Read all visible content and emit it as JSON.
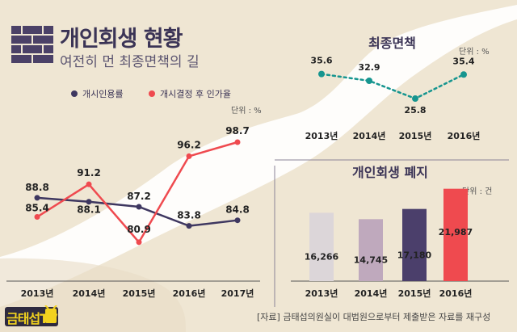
{
  "header": {
    "title": "개인회생 현황",
    "subtitle": "여전히 먼 최종면책의 길",
    "icon": "brick-wall-icon"
  },
  "legend": {
    "series1": "개시인용률",
    "series2": "개시결정 후 인가율"
  },
  "line_chart_unit": "단위 : %",
  "area_chart_title": "최종면책",
  "area_chart_unit": "단위 : %",
  "bar_chart_title": "개인회생 폐지",
  "bar_chart_unit": "단위 : 건",
  "footer": "[자료] 금태섭의원실이 대법원으로부터 제출받은 자료를 재구성",
  "logo_text": "금태섭TV",
  "colors": {
    "navy": "#3e3760",
    "red": "#ef4a4f",
    "teal": "#16958f",
    "bar1": "#dcd6d9",
    "bar2": "#bfa9bd",
    "bar3": "#4b3f6b",
    "bar4": "#ef4a4f",
    "background": "#efe6d3",
    "road": "#ffffff"
  },
  "chart_data": [
    {
      "type": "line",
      "categories": [
        "2013년",
        "2014년",
        "2015년",
        "2016년",
        "2017년"
      ],
      "series": [
        {
          "name": "개시인용률",
          "values": [
            88.8,
            88.1,
            87.2,
            83.8,
            84.8
          ],
          "labels": [
            "88.8",
            "88.1",
            "87.2",
            "83.8",
            "84.8"
          ],
          "color": "#3e3760"
        },
        {
          "name": "개시결정 후 인가율",
          "values": [
            85.4,
            91.2,
            80.9,
            96.2,
            98.7
          ],
          "labels": [
            "85.4",
            "91.2",
            "80.9",
            "96.2",
            "98.7"
          ],
          "color": "#ef4a4f"
        }
      ],
      "ylabel": "단위 : %",
      "ylim": [
        78,
        101
      ],
      "legend": "top-left",
      "grid": false
    },
    {
      "type": "line",
      "title": "최종면책",
      "categories": [
        "2013년",
        "2014년",
        "2015년",
        "2016년"
      ],
      "values": [
        35.6,
        32.9,
        25.8,
        35.4
      ],
      "labels": [
        "35.6",
        "32.9",
        "25.8",
        "35.4"
      ],
      "ylabel": "단위 : %",
      "style": "dotted",
      "color": "#16958f",
      "ylim": [
        20,
        40
      ]
    },
    {
      "type": "bar",
      "title": "개인회생 폐지",
      "categories": [
        "2013년",
        "2014년",
        "2015년",
        "2016년"
      ],
      "values": [
        16266,
        14745,
        17180,
        21987
      ],
      "labels": [
        "16,266",
        "14,745",
        "17,180",
        "21,987"
      ],
      "colors": [
        "#dcd6d9",
        "#bfa9bd",
        "#4b3f6b",
        "#ef4a4f"
      ],
      "ylabel": "단위 : 건",
      "ylim": [
        0,
        25000
      ]
    }
  ]
}
